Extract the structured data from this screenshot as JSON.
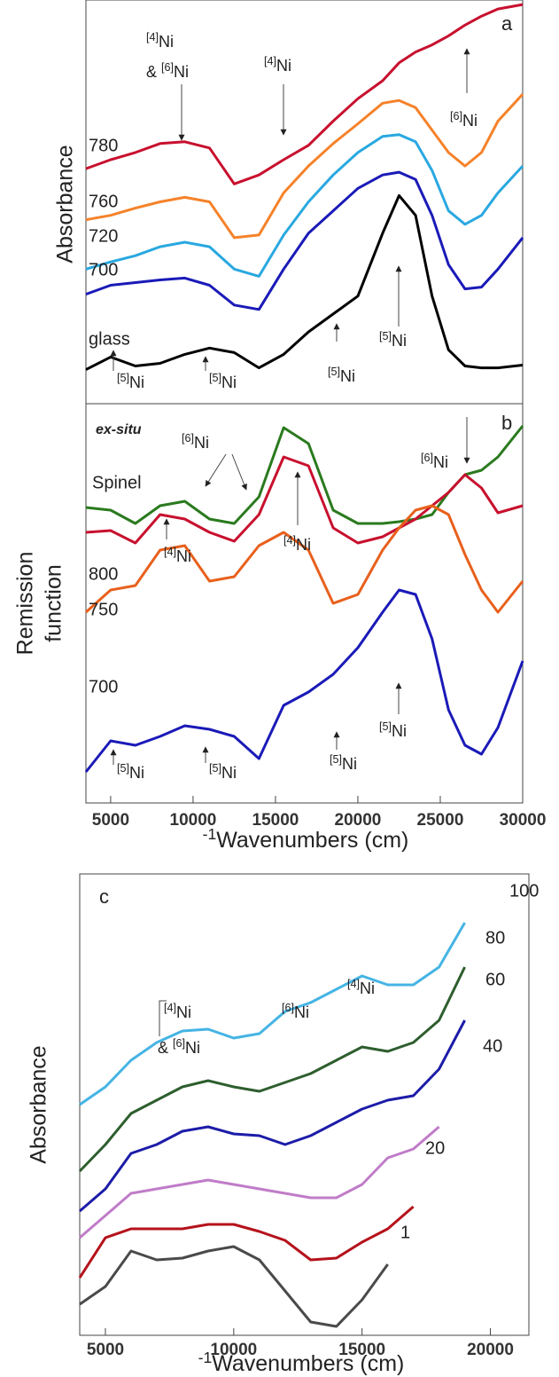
{
  "chart_data": [
    {
      "type": "line",
      "panel_label": "a",
      "ylabel": "Absorbance",
      "x": [
        3500,
        5000,
        6500,
        8000,
        9500,
        11000,
        12500,
        14000,
        15500,
        17000,
        18500,
        20000,
        21500,
        22500,
        23500,
        24500,
        25500,
        26500,
        27500,
        28500,
        30000
      ],
      "xlim": [
        3500,
        30000
      ],
      "ylim": [
        0,
        450
      ],
      "series": [
        {
          "name": "780",
          "color": "#c8102e",
          "values": [
            262,
            272,
            280,
            290,
            292,
            285,
            245,
            255,
            272,
            288,
            315,
            340,
            360,
            380,
            392,
            400,
            410,
            422,
            432,
            440,
            445
          ]
        },
        {
          "name": "760",
          "color": "#f5822a",
          "values": [
            205,
            210,
            218,
            225,
            230,
            225,
            185,
            188,
            235,
            265,
            290,
            312,
            335,
            338,
            330,
            305,
            280,
            265,
            280,
            315,
            345
          ]
        },
        {
          "name": "720",
          "color": "#29a8e0",
          "values": [
            150,
            158,
            165,
            175,
            180,
            175,
            150,
            142,
            188,
            225,
            255,
            280,
            298,
            300,
            292,
            260,
            215,
            200,
            210,
            235,
            265
          ]
        },
        {
          "name": "700",
          "color": "#1a1ab8",
          "values": [
            122,
            132,
            135,
            138,
            140,
            132,
            110,
            105,
            150,
            190,
            215,
            240,
            255,
            258,
            250,
            210,
            155,
            128,
            130,
            150,
            185
          ]
        },
        {
          "name": "glass",
          "color": "#000000",
          "values": [
            38,
            52,
            42,
            45,
            55,
            62,
            57,
            40,
            55,
            80,
            100,
            120,
            190,
            232,
            210,
            120,
            60,
            42,
            40,
            40,
            43
          ]
        }
      ],
      "annotations": [
        {
          "sup": "[4]",
          "text": "Ni"
        },
        {
          "prefix": "& ",
          "sup": "[6]",
          "text": "Ni"
        },
        {
          "sup": "[4]",
          "text": "Ni"
        },
        {
          "sup": "[6]",
          "text": "Ni"
        },
        {
          "sup": "[5]",
          "text": "Ni"
        },
        {
          "sup": "[5]",
          "text": "Ni"
        },
        {
          "sup": "[5]",
          "text": "Ni"
        },
        {
          "sup": "[5]",
          "text": "Ni"
        }
      ]
    },
    {
      "type": "line",
      "panel_label": "b",
      "note": "ex-situ",
      "ylabel": [
        "Remission",
        "function"
      ],
      "xlabel": {
        "text": "Wavenumbers (cm",
        "sup": "-1",
        "suffix": ")"
      },
      "x": [
        3500,
        5000,
        6500,
        8000,
        9500,
        11000,
        12500,
        14000,
        15500,
        17000,
        18500,
        20000,
        21500,
        22500,
        23500,
        24500,
        25500,
        26500,
        27500,
        28500,
        30000
      ],
      "xlim": [
        3500,
        30000
      ],
      "ylim": [
        0,
        450
      ],
      "xticks": [
        5000,
        10000,
        15000,
        20000,
        25000,
        30000
      ],
      "series": [
        {
          "name": "Spinel",
          "color": "#2a7a1e",
          "values": [
            333,
            330,
            315,
            335,
            340,
            320,
            315,
            345,
            423,
            405,
            330,
            315,
            315,
            317,
            320,
            325,
            350,
            370,
            375,
            390,
            425
          ]
        },
        {
          "name": "800",
          "color": "#c8102e",
          "values": [
            305,
            307,
            293,
            325,
            320,
            305,
            295,
            325,
            390,
            380,
            310,
            293,
            300,
            310,
            320,
            335,
            350,
            370,
            355,
            327,
            335
          ]
        },
        {
          "name": "750",
          "color": "#e8601c",
          "values": [
            215,
            240,
            245,
            285,
            290,
            250,
            255,
            290,
            305,
            285,
            225,
            235,
            285,
            310,
            330,
            335,
            325,
            280,
            240,
            215,
            250
          ]
        },
        {
          "name": "700",
          "color": "#1a1ab8",
          "values": [
            35,
            70,
            65,
            75,
            87,
            83,
            75,
            50,
            110,
            125,
            145,
            175,
            215,
            240,
            235,
            185,
            105,
            65,
            55,
            85,
            160
          ]
        }
      ],
      "annotations": [
        {
          "sup": "[6]",
          "text": "Ni"
        },
        {
          "sup": "[6]",
          "text": "Ni"
        },
        {
          "sup": "[4]",
          "text": "Ni"
        },
        {
          "sup": "[4]",
          "text": "Ni"
        },
        {
          "sup": "[5]",
          "text": "Ni"
        },
        {
          "sup": "[5]",
          "text": "Ni"
        },
        {
          "sup": "[5]",
          "text": "Ni"
        },
        {
          "sup": "[5]",
          "text": "Ni"
        }
      ]
    },
    {
      "type": "line",
      "panel_label": "c",
      "ylabel": "Absorbance",
      "xlabel": {
        "text": "Wavenumbers (cm",
        "sup": "-1",
        "suffix": ")"
      },
      "x": [
        4000,
        5000,
        6000,
        7000,
        8000,
        9000,
        10000,
        11000,
        12000,
        13000,
        14000,
        15000,
        16000,
        17000,
        18000,
        19000,
        20000
      ],
      "xlim": [
        4000,
        21500
      ],
      "ylim": [
        0,
        520
      ],
      "xticks": [
        5000,
        10000,
        15000,
        20000
      ],
      "series": [
        {
          "name": "100",
          "color": "#45b4e4",
          "values": [
            260,
            280,
            310,
            330,
            343,
            345,
            335,
            340,
            365,
            375,
            390,
            405,
            395,
            395,
            415,
            465,
            null
          ]
        },
        {
          "name": "80",
          "color": "#2e5e2e",
          "values": [
            185,
            215,
            250,
            265,
            280,
            287,
            280,
            275,
            285,
            295,
            310,
            325,
            320,
            330,
            355,
            415,
            null
          ]
        },
        {
          "name": "60",
          "color": "#1c1ca8",
          "values": [
            140,
            165,
            205,
            215,
            230,
            235,
            227,
            225,
            215,
            225,
            240,
            255,
            265,
            270,
            300,
            355,
            null
          ]
        },
        {
          "name": "40",
          "color": "#c07cc8",
          "values": [
            110,
            135,
            160,
            165,
            170,
            175,
            170,
            165,
            160,
            155,
            155,
            170,
            200,
            210,
            235,
            null,
            null
          ]
        },
        {
          "name": "20",
          "color": "#b5121b",
          "values": [
            65,
            110,
            120,
            120,
            120,
            125,
            125,
            117,
            107,
            85,
            87,
            105,
            120,
            145,
            null,
            null,
            null
          ]
        },
        {
          "name": "1",
          "color": "#4a4a4a",
          "values": [
            35,
            55,
            95,
            85,
            87,
            95,
            100,
            85,
            50,
            15,
            10,
            40,
            80,
            null,
            null,
            null,
            null
          ]
        }
      ],
      "annotations": [
        {
          "sup": "[4]",
          "text": "Ni"
        },
        {
          "prefix": "& ",
          "sup": "[6]",
          "text": "Ni"
        },
        {
          "sup": "[6]",
          "text": "Ni"
        },
        {
          "sup": "[4]",
          "text": "Ni"
        }
      ]
    }
  ]
}
